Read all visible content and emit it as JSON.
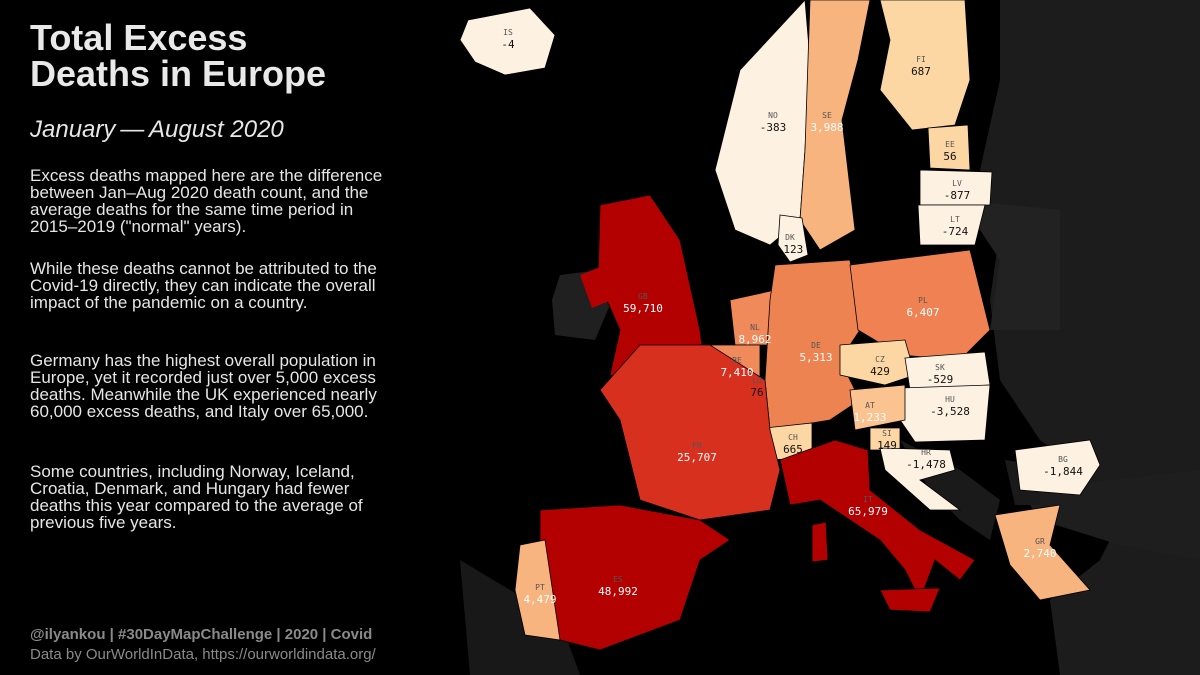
{
  "header": {
    "title_line1": "Total Excess",
    "title_line2": "Deaths in Europe",
    "subtitle": "January — August 2020"
  },
  "body": {
    "paragraphs": [
      "Excess deaths mapped here are the difference between Jan–Aug 2020 death count, and the average deaths for the same time period in 2015–2019 (\"normal\" years).",
      "While these deaths cannot be attributed to the Covid-19 directly, they can indicate the overall impact of the pandemic on a country.",
      "Germany has the highest overall population in Europe, yet it recorded just over 5,000 excess deaths. Meanwhile the UK experienced nearly 60,000 excess deaths, and Italy over 65,000.",
      "Some countries, including Norway, Iceland, Croatia, Denmark, and Hungary had fewer deaths this year compared to the average of previous five years."
    ]
  },
  "footer": {
    "credit": "@ilyankou | #30DayMapChallenge | 2020 | Covid",
    "source": "Data by OurWorldInData, https://ourworldindata.org/"
  },
  "map": {
    "countries": [
      {
        "code": "IS",
        "value": "-4",
        "color": "#fdf1e1"
      },
      {
        "code": "NO",
        "value": "-383",
        "color": "#fdf1e1"
      },
      {
        "code": "SE",
        "value": "3,988",
        "color": "#f8b47e"
      },
      {
        "code": "FI",
        "value": "687",
        "color": "#fcd7a4"
      },
      {
        "code": "EE",
        "value": "56",
        "color": "#fcd7a4"
      },
      {
        "code": "LV",
        "value": "-877",
        "color": "#fdf1e1"
      },
      {
        "code": "LT",
        "value": "-724",
        "color": "#fdf1e1"
      },
      {
        "code": "DK",
        "value": "-123",
        "color": "#fdf1e1"
      },
      {
        "code": "GB",
        "value": "59,710",
        "color": "#b30000"
      },
      {
        "code": "NL",
        "value": "8,962",
        "color": "#f08a5b"
      },
      {
        "code": "BE",
        "value": "7,410",
        "color": "#f08a5b"
      },
      {
        "code": "LU",
        "value": "76",
        "color": "#fcd7a4"
      },
      {
        "code": "DE",
        "value": "5,313",
        "color": "#ee8352"
      },
      {
        "code": "PL",
        "value": "6,407",
        "color": "#ef8153"
      },
      {
        "code": "CZ",
        "value": "429",
        "color": "#fcd7a4"
      },
      {
        "code": "SK",
        "value": "-529",
        "color": "#fdf1e1"
      },
      {
        "code": "HU",
        "value": "-3,528",
        "color": "#fdf1e1"
      },
      {
        "code": "AT",
        "value": "1,233",
        "color": "#fbc38f"
      },
      {
        "code": "CH",
        "value": "665",
        "color": "#fcd7a4"
      },
      {
        "code": "SI",
        "value": "149",
        "color": "#fcd7a4"
      },
      {
        "code": "HR",
        "value": "-1,478",
        "color": "#fdf1e1"
      },
      {
        "code": "FR",
        "value": "25,707",
        "color": "#d7301f"
      },
      {
        "code": "IT",
        "value": "65,979",
        "color": "#b30000"
      },
      {
        "code": "ES",
        "value": "48,992",
        "color": "#b30000"
      },
      {
        "code": "PT",
        "value": "4,479",
        "color": "#f8b47e"
      },
      {
        "code": "BG",
        "value": "-1,844",
        "color": "#fdf1e1"
      },
      {
        "code": "GR",
        "value": "2,740",
        "color": "#f8b47e"
      }
    ]
  }
}
